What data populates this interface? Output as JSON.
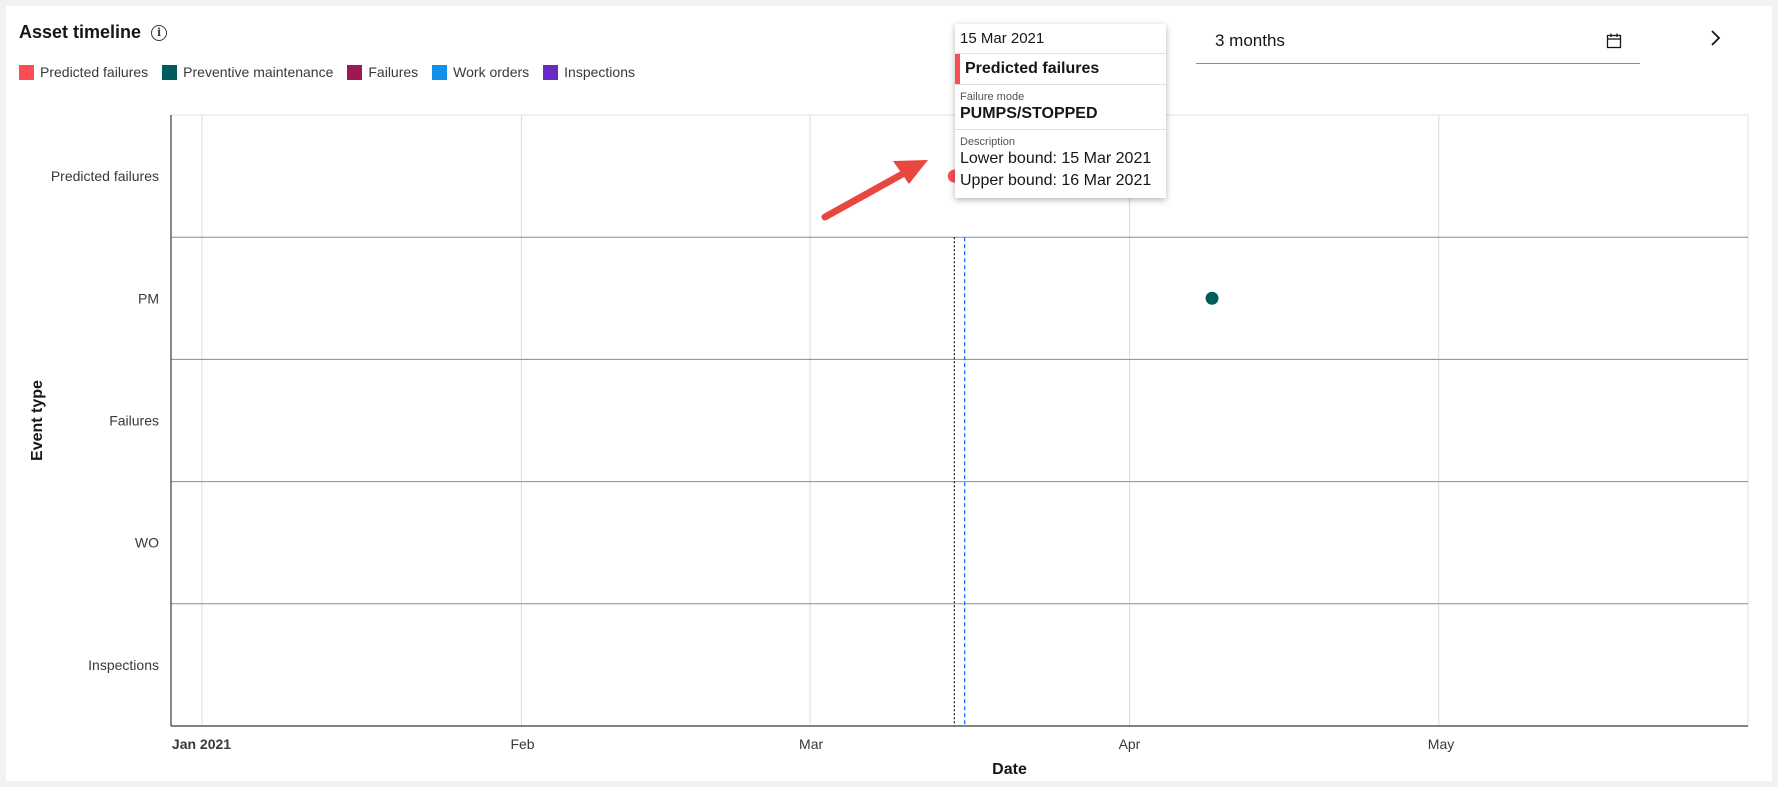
{
  "header": {
    "title": "Asset timeline",
    "info_icon": "info-icon"
  },
  "legend": [
    {
      "label": "Predicted failures",
      "color": "#fa4d56"
    },
    {
      "label": "Preventive maintenance",
      "color": "#005d5d"
    },
    {
      "label": "Failures",
      "color": "#9f1853"
    },
    {
      "label": "Work orders",
      "color": "#1192e8"
    },
    {
      "label": "Inspections",
      "color": "#6929c4"
    }
  ],
  "controls": {
    "range_value": "3 months",
    "calendar_icon": "calendar-icon",
    "next_icon": "chevron-right-icon"
  },
  "tooltip": {
    "date": "15 Mar 2021",
    "event": "Predicted failures",
    "mode_label": "Failure mode",
    "mode_value": "PUMPS/STOPPED",
    "desc_label": "Description",
    "lower": "Lower bound: 15 Mar 2021",
    "upper": "Upper bound: 16 Mar 2021"
  },
  "chart_data": {
    "type": "scatter",
    "xlabel": "Date",
    "ylabel": "Event type",
    "categories": [
      "Predicted failures",
      "PM",
      "Failures",
      "WO",
      "Inspections"
    ],
    "x_ticks": [
      "Jan 2021",
      "Feb",
      "Mar",
      "Apr",
      "May"
    ],
    "xlim": [
      "2020-12-29",
      "2021-05-31"
    ],
    "points": [
      {
        "category": "Predicted failures",
        "date": "2021-03-15",
        "color": "#fa4d56"
      },
      {
        "category": "PM",
        "date": "2021-04-09",
        "color": "#005d5d"
      }
    ],
    "markers": [
      "2021-03-15",
      "2021-03-16"
    ],
    "grid": true
  }
}
